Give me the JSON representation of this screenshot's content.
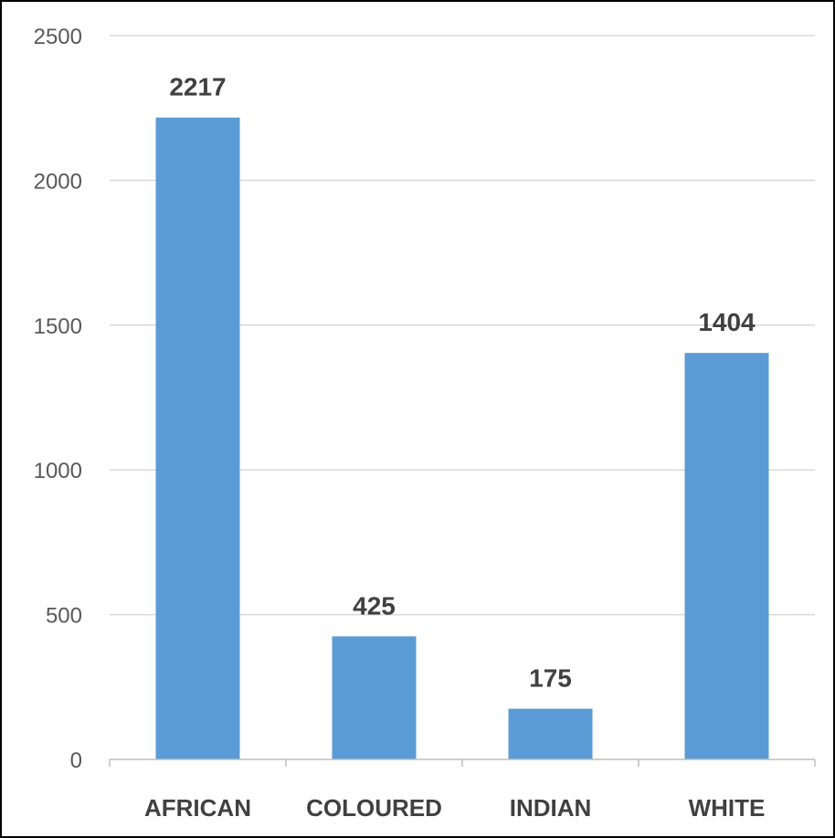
{
  "chart_data": {
    "type": "bar",
    "categories": [
      "AFRICAN",
      "COLOURED",
      "INDIAN",
      "WHITE"
    ],
    "values": [
      2217,
      425,
      175,
      1404
    ],
    "data_labels": [
      "2217",
      "425",
      "175",
      "1404"
    ],
    "title": "",
    "xlabel": "",
    "ylabel": "",
    "ylim": [
      0,
      2500
    ],
    "yticks": [
      0,
      500,
      1000,
      1500,
      2000,
      2500
    ],
    "ytick_labels": [
      "0",
      "500",
      "1000",
      "1500",
      "2000",
      "2500"
    ],
    "grid": true,
    "legend": "none",
    "bar_color": "#5B9BD5",
    "gridline_color": "#D9D9D9"
  }
}
